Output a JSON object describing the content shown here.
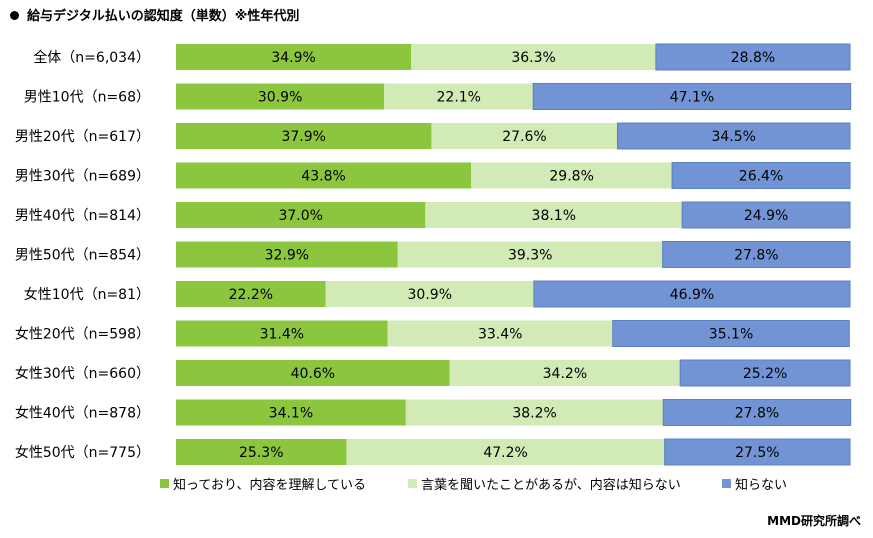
{
  "title": "給与デジタル払いの認知度（単数）※性年代別",
  "credit": "MMD研究所調べ",
  "colors": {
    "known": "#8cc63f",
    "heard": "#d2ebb6",
    "unknown": "#7394d4",
    "border": "#5b7fc4"
  },
  "chart_data": {
    "type": "bar",
    "orientation": "horizontal",
    "stacked": true,
    "percent_stacked": true,
    "title": "給与デジタル払いの認知度（単数）※性年代別",
    "xlim": [
      0,
      100
    ],
    "grid": false,
    "legend_position": "bottom",
    "categories": [
      "全体（n=6,034）",
      "男性10代（n=68）",
      "男性20代（n=617）",
      "男性30代（n=689）",
      "男性40代（n=814）",
      "男性50代（n=854）",
      "女性10代（n=81）",
      "女性20代（n=598）",
      "女性30代（n=660）",
      "女性40代（n=878）",
      "女性50代（n=775）"
    ],
    "series": [
      {
        "name": "知っており、内容を理解している",
        "color": "#8cc63f",
        "values": [
          34.9,
          30.9,
          37.9,
          43.8,
          37.0,
          32.9,
          22.2,
          31.4,
          40.6,
          34.1,
          25.3
        ],
        "labels": [
          "34.9%",
          "30.9%",
          "37.9%",
          "43.8%",
          "37.0%",
          "32.9%",
          "22.2%",
          "31.4%",
          "40.6%",
          "34.1%",
          "25.3%"
        ]
      },
      {
        "name": "言葉を聞いたことがあるが、内容は知らない",
        "color": "#d2ebb6",
        "values": [
          36.3,
          22.1,
          27.6,
          29.8,
          38.1,
          39.3,
          30.9,
          33.4,
          34.2,
          38.2,
          47.2
        ],
        "labels": [
          "36.3%",
          "22.1%",
          "27.6%",
          "29.8%",
          "38.1%",
          "39.3%",
          "30.9%",
          "33.4%",
          "34.2%",
          "38.2%",
          "47.2%"
        ]
      },
      {
        "name": "知らない",
        "color": "#7394d4",
        "values": [
          28.8,
          47.1,
          34.5,
          26.4,
          24.9,
          27.8,
          46.9,
          35.1,
          25.2,
          27.8,
          27.5
        ],
        "labels": [
          "28.8%",
          "47.1%",
          "34.5%",
          "26.4%",
          "24.9%",
          "27.8%",
          "46.9%",
          "35.1%",
          "25.2%",
          "27.8%",
          "27.5%"
        ]
      }
    ]
  }
}
